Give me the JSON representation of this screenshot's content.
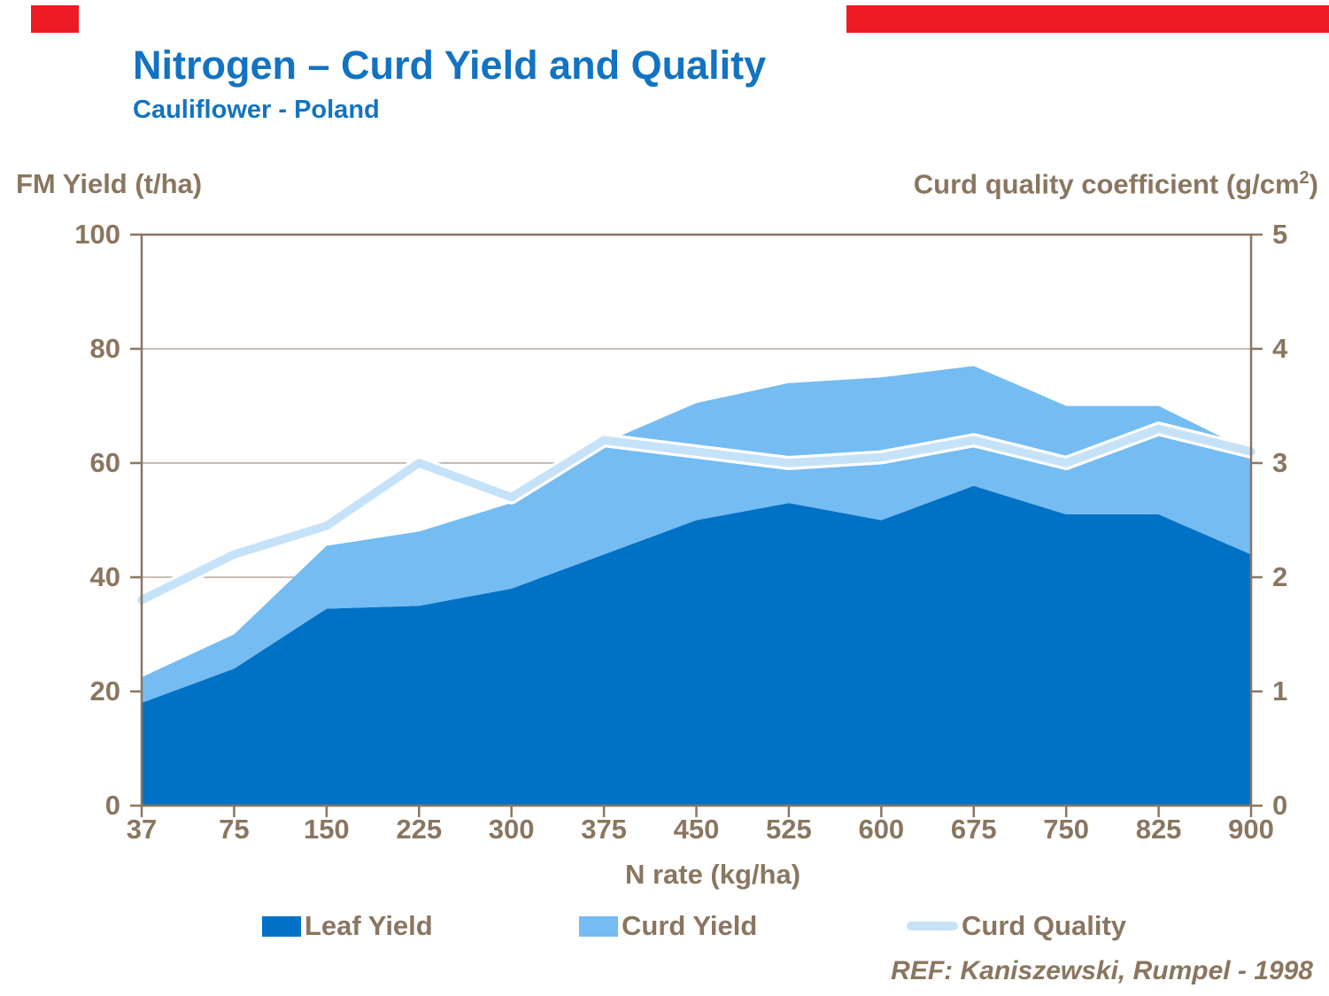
{
  "slide": {
    "title": "Nitrogen – Curd Yield and Quality",
    "subtitle": "Cauliflower - Poland",
    "reference": "REF: Kaniszewski, Rumpel - 1998"
  },
  "axes": {
    "left_title": "FM Yield (t/ha)",
    "right_title_main": "Curd quality coefficient (g/cm",
    "right_title_sup": "2",
    "right_title_suffix": ")",
    "x_title": "N rate (kg/ha)",
    "left_tick_labels": [
      "100",
      "80",
      "60",
      "40",
      "20",
      "0"
    ],
    "right_tick_labels": [
      "5",
      "4",
      "3",
      "2",
      "1",
      "0"
    ]
  },
  "colors": {
    "accent_red": "#ED1C24",
    "title_blue": "#1273C2",
    "text_brown": "#8A7660",
    "axis_line": "#8A7663",
    "gridline": "#B3A89D",
    "leaf_blue": "#0072C6",
    "curd_blue": "#74BCF2",
    "quality_blue": "#C6E2F8",
    "quality_halo": "#FFFFFF",
    "background": "#FFFFFF"
  },
  "legend": {
    "items": [
      {
        "label": "Leaf Yield",
        "shape": "square",
        "color": "#0072C6",
        "x": 296
      },
      {
        "label": "Curd Yield",
        "shape": "square",
        "color": "#74BCF2",
        "x": 654
      },
      {
        "label": "Curd Quality",
        "shape": "line",
        "color": "#C6E2F8",
        "x": 1024
      }
    ]
  },
  "chart_data": {
    "type": "area",
    "stacked": true,
    "title": "Nitrogen – Curd Yield and Quality",
    "xlabel": "N rate (kg/ha)",
    "ylabel_left": "FM Yield (t/ha)",
    "ylabel_right": "Curd quality coefficient (g/cm2)",
    "categories": [
      37,
      75,
      150,
      225,
      300,
      375,
      450,
      525,
      600,
      675,
      750,
      825,
      900
    ],
    "left_axis": {
      "min": 0,
      "max": 100,
      "step": 20
    },
    "right_axis": {
      "min": 0,
      "max": 5,
      "step": 1
    },
    "grid": "horizontal",
    "legend_position": "bottom",
    "series": [
      {
        "name": "Leaf Yield",
        "type": "area",
        "axis": "left",
        "color": "#0072C6",
        "values": [
          18,
          24,
          34.5,
          35,
          38,
          44,
          50,
          53,
          50,
          56,
          51,
          51,
          44
        ]
      },
      {
        "name": "Curd Yield",
        "type": "area",
        "axis": "left",
        "color": "#74BCF2",
        "values": [
          4.5,
          6,
          11,
          13,
          15,
          19.5,
          20.5,
          21,
          25,
          21,
          19,
          19,
          18
        ]
      },
      {
        "name": "Curd Quality",
        "type": "line",
        "axis": "right",
        "color": "#C6E2F8",
        "values": [
          1.8,
          2.2,
          2.45,
          3.0,
          2.7,
          3.2,
          3.1,
          3.0,
          3.05,
          3.2,
          3.0,
          3.3,
          3.1
        ]
      }
    ]
  }
}
